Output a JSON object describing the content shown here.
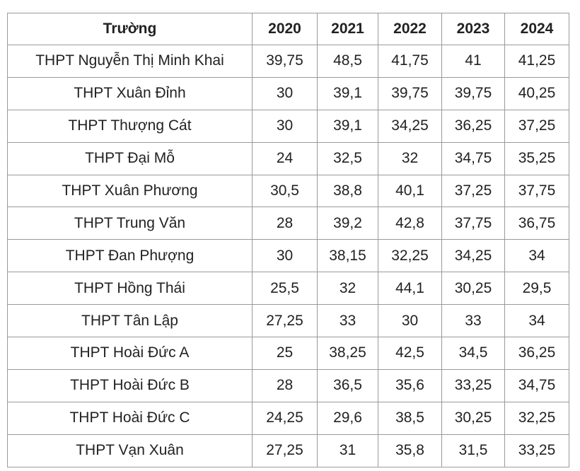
{
  "table": {
    "headers": [
      "Trường",
      "2020",
      "2021",
      "2022",
      "2023",
      "2024"
    ],
    "rows": [
      {
        "school": "THPT Nguyễn Thị Minh Khai",
        "scores": [
          "39,75",
          "48,5",
          "41,75",
          "41",
          "41,25"
        ]
      },
      {
        "school": "THPT Xuân Đỉnh",
        "scores": [
          "30",
          "39,1",
          "39,75",
          "39,75",
          "40,25"
        ]
      },
      {
        "school": "THPT Thượng Cát",
        "scores": [
          "30",
          "39,1",
          "34,25",
          "36,25",
          "37,25"
        ]
      },
      {
        "school": "THPT Đại Mỗ",
        "scores": [
          "24",
          "32,5",
          "32",
          "34,75",
          "35,25"
        ]
      },
      {
        "school": "THPT Xuân Phương",
        "scores": [
          "30,5",
          "38,8",
          "40,1",
          "37,25",
          "37,75"
        ]
      },
      {
        "school": "THPT Trung Văn",
        "scores": [
          "28",
          "39,2",
          "42,8",
          "37,75",
          "36,75"
        ]
      },
      {
        "school": "THPT Đan Phượng",
        "scores": [
          "30",
          "38,15",
          "32,25",
          "34,25",
          "34"
        ]
      },
      {
        "school": "THPT Hồng Thái",
        "scores": [
          "25,5",
          "32",
          "44,1",
          "30,25",
          "29,5"
        ]
      },
      {
        "school": "THPT Tân Lập",
        "scores": [
          "27,25",
          "33",
          "30",
          "33",
          "34"
        ]
      },
      {
        "school": "THPT Hoài Đức A",
        "scores": [
          "25",
          "38,25",
          "42,5",
          "34,5",
          "36,25"
        ]
      },
      {
        "school": "THPT Hoài Đức B",
        "scores": [
          "28",
          "36,5",
          "35,6",
          "33,25",
          "34,75"
        ]
      },
      {
        "school": "THPT Hoài Đức C",
        "scores": [
          "24,25",
          "29,6",
          "38,5",
          "30,25",
          "32,25"
        ]
      },
      {
        "school": "THPT Vạn Xuân",
        "scores": [
          "27,25",
          "31",
          "35,8",
          "31,5",
          "33,25"
        ]
      }
    ]
  }
}
